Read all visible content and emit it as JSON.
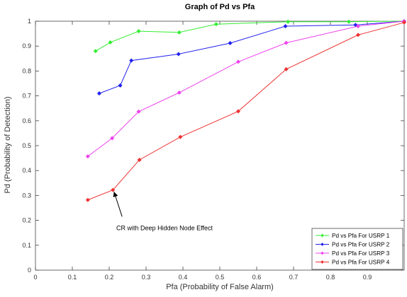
{
  "chart_data": {
    "type": "line",
    "title": "Graph of Pd vs Pfa",
    "xlabel": "Pfa (Probability of False Alarm)",
    "ylabel": "Pd (Probability of Detection)",
    "xlim": [
      0,
      1
    ],
    "ylim": [
      0,
      1
    ],
    "xticks": [
      0,
      0.1,
      0.2,
      0.3,
      0.4,
      0.5,
      0.6,
      0.7,
      0.8,
      0.9
    ],
    "xtick_labels": [
      "0",
      "0.1",
      "0.2",
      "0.3",
      "0.4",
      "0.5",
      "0.6",
      "0.7",
      "0.8",
      "0.9"
    ],
    "yticks": [
      0,
      0.1,
      0.2,
      0.3,
      0.4,
      0.5,
      0.6,
      0.7,
      0.8,
      0.9,
      1
    ],
    "ytick_labels": [
      "0",
      "0.1",
      "0.2",
      "0.3",
      "0.4",
      "0.5",
      "0.6",
      "0.7",
      "0.8",
      "0.9",
      "1"
    ],
    "grid": false,
    "legend_position": "bottom-right",
    "series": [
      {
        "name": "Pd vs Pfa For USRP 1",
        "color": "#33ee33",
        "marker": "diamond",
        "x": [
          0.163,
          0.203,
          0.28,
          0.39,
          0.49,
          0.685,
          0.85,
          1.0
        ],
        "y": [
          0.88,
          0.915,
          0.96,
          0.955,
          0.988,
          0.998,
          0.998,
          1.0
        ]
      },
      {
        "name": "Pd vs Pfa For USRP 2",
        "color": "#2222ee",
        "marker": "diamond",
        "x": [
          0.173,
          0.23,
          0.26,
          0.388,
          0.528,
          0.678,
          0.868,
          1.0
        ],
        "y": [
          0.71,
          0.742,
          0.842,
          0.868,
          0.912,
          0.98,
          0.985,
          1.0
        ]
      },
      {
        "name": "Pd vs Pfa For USRP 3",
        "color": "#ee44ee",
        "marker": "diamond",
        "x": [
          0.142,
          0.208,
          0.28,
          0.39,
          0.55,
          0.68,
          0.875,
          1.0
        ],
        "y": [
          0.457,
          0.53,
          0.637,
          0.713,
          0.837,
          0.913,
          0.98,
          1.0
        ]
      },
      {
        "name": "Pd vs Pfa For USRP 4",
        "color": "#ee3333",
        "marker": "diamond",
        "x": [
          0.142,
          0.21,
          0.282,
          0.393,
          0.55,
          0.68,
          0.875,
          1.0
        ],
        "y": [
          0.282,
          0.322,
          0.443,
          0.535,
          0.638,
          0.807,
          0.945,
          0.995
        ]
      }
    ],
    "annotations": [
      {
        "text": "CR with Deep Hidden Node Effect",
        "text_at": [
          0.35,
          0.2
        ],
        "arrow_to": [
          0.213,
          0.315
        ]
      }
    ]
  }
}
